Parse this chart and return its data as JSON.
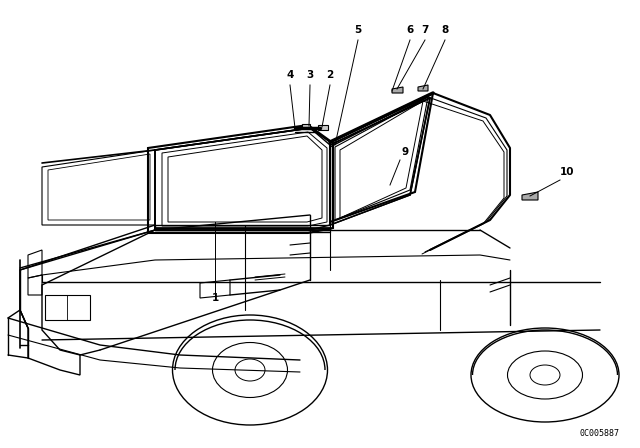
{
  "bg_color": "#ffffff",
  "line_color": "#000000",
  "fig_width": 6.4,
  "fig_height": 4.48,
  "dpi": 100,
  "diagram_code": "0C005887"
}
